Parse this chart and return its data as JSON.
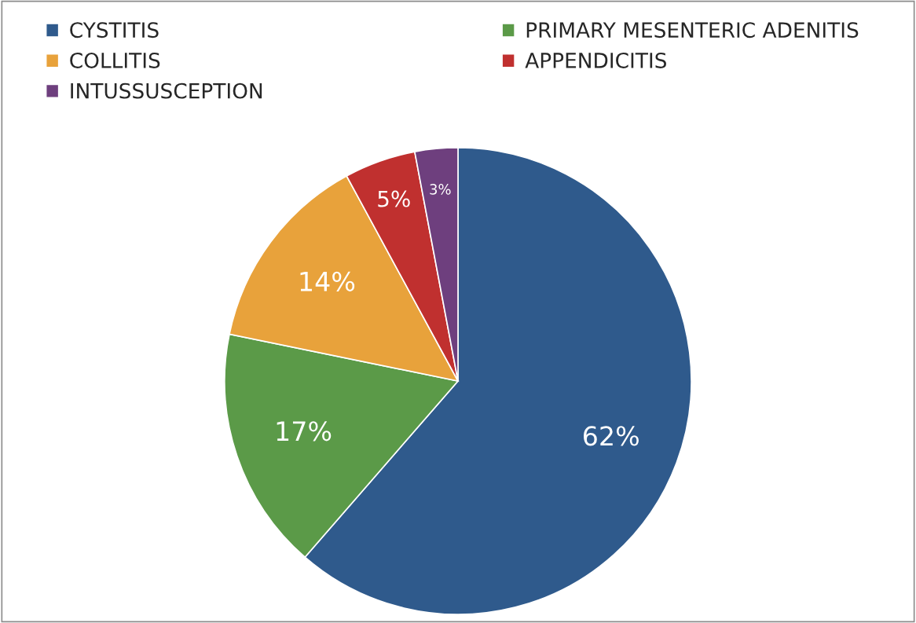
{
  "chart_data": {
    "type": "pie",
    "categories": [
      "CYSTITIS",
      "PRIMARY MESENTERIC ADENITIS",
      "COLLITIS",
      "APPENDICITIS",
      "INTUSSUSCEPTION"
    ],
    "values": [
      62,
      17,
      14,
      5,
      3
    ],
    "value_labels": [
      "62%",
      "17%",
      "14%",
      "5%",
      "3%"
    ],
    "colors": [
      "#2f5a8c",
      "#5b9a48",
      "#e8a23b",
      "#c0302f",
      "#6e3f7e"
    ],
    "legend": "top"
  }
}
